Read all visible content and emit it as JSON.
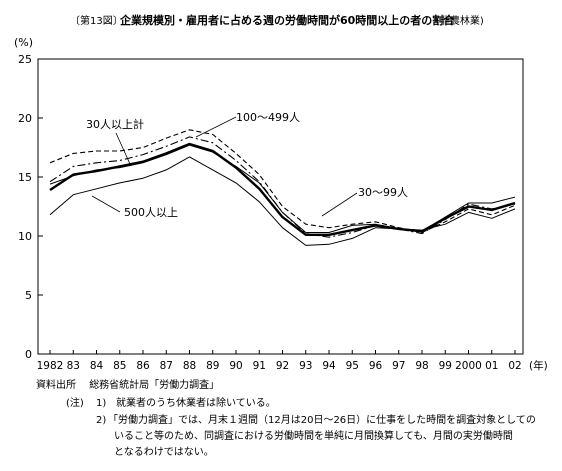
{
  "title_fig": "〔第13図〕",
  "title_main": "企業規模別・雇用者に占める週の労働時間が60時間以上の者の割合",
  "title_sub": "(非農林業)",
  "chart_data": {
    "type": "line",
    "title": "企業規模別・雇用者に占める週の労働時間が60時間以上の者の割合",
    "ylabel": "(%)",
    "xlabel_unit": "(年)",
    "ylim": [
      0,
      25
    ],
    "yticks": [
      0,
      5,
      10,
      15,
      20,
      25
    ],
    "grid": false,
    "categories": [
      "1982",
      "83",
      "84",
      "85",
      "86",
      "87",
      "88",
      "89",
      "90",
      "91",
      "92",
      "93",
      "94",
      "95",
      "96",
      "97",
      "98",
      "99",
      "2000",
      "01",
      "02"
    ],
    "series": [
      {
        "name": "100～499人",
        "style": "dashed",
        "values": [
          16.2,
          17.0,
          17.2,
          17.2,
          17.5,
          18.3,
          19.0,
          18.6,
          17.0,
          15.2,
          12.5,
          11.0,
          10.7,
          11.0,
          11.2,
          10.7,
          10.3,
          11.2,
          12.3,
          11.8,
          12.6
        ]
      },
      {
        "name": "30人以上計",
        "style": "solid-bold",
        "values": [
          13.9,
          15.2,
          15.5,
          15.9,
          16.3,
          17.0,
          17.8,
          17.2,
          15.8,
          14.0,
          11.6,
          10.1,
          10.1,
          10.5,
          10.9,
          10.6,
          10.4,
          11.5,
          12.5,
          12.2,
          12.8
        ]
      },
      {
        "name": "",
        "style": "dashdot",
        "values": [
          14.6,
          15.9,
          16.2,
          16.4,
          16.9,
          17.6,
          18.4,
          17.9,
          16.4,
          14.6,
          12.0,
          10.2,
          9.9,
          10.3,
          10.9,
          10.6,
          10.2,
          11.4,
          12.7,
          12.3,
          12.7
        ]
      },
      {
        "name": "30～99人",
        "style": "solid-thin",
        "values": [
          14.4,
          15.1,
          15.6,
          15.8,
          16.2,
          16.9,
          17.7,
          17.1,
          15.9,
          14.5,
          12.0,
          10.3,
          10.3,
          10.9,
          11.0,
          10.6,
          10.4,
          11.6,
          12.8,
          12.8,
          13.3
        ]
      },
      {
        "name": "500人以上",
        "style": "solid-thin",
        "values": [
          11.8,
          13.5,
          14.0,
          14.5,
          14.9,
          15.6,
          16.7,
          15.6,
          14.5,
          12.9,
          10.7,
          9.2,
          9.3,
          9.8,
          10.7,
          10.6,
          10.5,
          11.0,
          12.0,
          11.5,
          12.3
        ]
      }
    ],
    "annotations": [
      "30人以上計",
      "100～499人",
      "30～99人",
      "500人以上"
    ]
  },
  "notes": {
    "source_label": "資料出所",
    "source_text": "総務省統計局「労働力調査」",
    "note_label": "(注)",
    "note1_num": "1)",
    "note1": "就業者のうち休業者は除いている。",
    "note2_num": "2)",
    "note2_line1": "「労働力調査」では、月末１週間（12月は20日～26日）に仕事をした時間を調査対象としての",
    "note2_line2": "いること等のため、同調査における労働時間を単純に月間換算しても、月間の実労働時間",
    "note2_line3": "となるわけではない。"
  }
}
